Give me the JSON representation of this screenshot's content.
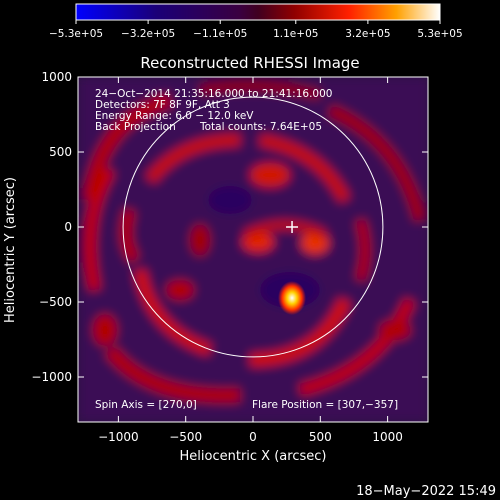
{
  "chart_data": {
    "type": "heatmap",
    "title": "Reconstructed RHESSI Image",
    "xlabel": "Heliocentric X (arcsec)",
    "ylabel": "Heliocentric Y (arcsec)",
    "xlim": [
      -1300,
      1300
    ],
    "ylim": [
      -1300,
      1000
    ],
    "xticks": [
      -1000,
      -500,
      0,
      500,
      1000
    ],
    "yticks": [
      -1000,
      -500,
      0,
      500,
      1000
    ],
    "xtick_labels": [
      "−1000",
      "−500",
      "0",
      "500",
      "1000"
    ],
    "ytick_labels": [
      "−1000",
      "−500",
      "0",
      "500",
      "1000"
    ],
    "colorbar": {
      "ticks": [
        -530000,
        -320000,
        -110000,
        110000,
        320000,
        530000
      ],
      "labels": [
        "−5.3e+05",
        "−3.2e+05",
        "−1.1e+05",
        "1.1e+05",
        "3.2e+05",
        "5.3e+05"
      ],
      "range": [
        -530000,
        530000
      ]
    },
    "annotations": [
      "24−Oct−2014 21:35:16.000 to 21:41:16.000",
      "Detectors: 7F 8F 9F, Att 3",
      "Energy Range: 6.0 − 12.0 keV",
      "Back Projection",
      "Total counts: 7.64E+05"
    ],
    "spin_axis": "Spin Axis = [270,0]",
    "flare_position_label": "Flare Position = [307,−357]",
    "flare_position": [
      307,
      -357
    ],
    "disk_center": [
      0,
      0
    ],
    "disk_radius": 965,
    "marker": [
      290,
      0
    ]
  },
  "footer": {
    "timestamp": "18−May−2022 15:49"
  }
}
